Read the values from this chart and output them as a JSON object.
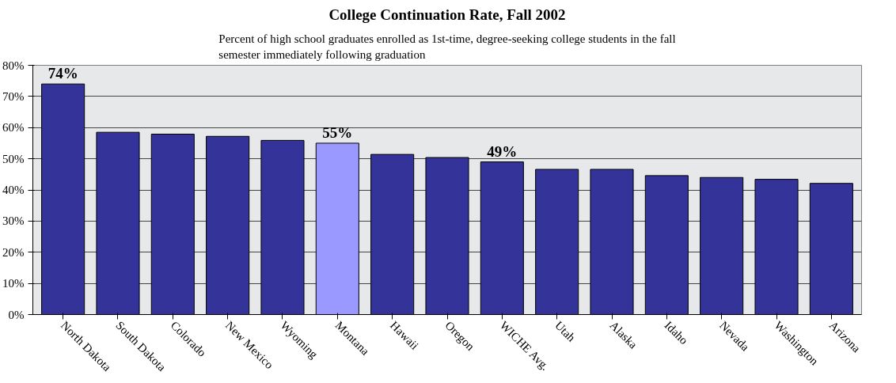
{
  "chart_data": {
    "type": "bar",
    "title": "College Continuation Rate, Fall 2002",
    "subtitle": "Percent of high school graduates enrolled as 1st-time, degree-seeking college students in the fall\nsemester immediately following graduation",
    "categories": [
      "North Dakota",
      "South Dakota",
      "Colorado",
      "New Mexico",
      "Wyoming",
      "Montana",
      "Hawaii",
      "Oregon",
      "WICHE Avg.",
      "Utah",
      "Alaska",
      "Idaho",
      "Nevada",
      "Washington",
      "Arizona"
    ],
    "values": [
      74,
      58.5,
      57.9,
      57.2,
      55.9,
      55,
      51.4,
      50.4,
      49,
      46.6,
      46.6,
      44.6,
      44.0,
      43.4,
      42.1
    ],
    "value_labels": [
      "74%",
      null,
      null,
      null,
      null,
      "55%",
      null,
      null,
      "49%",
      null,
      null,
      null,
      null,
      null,
      null
    ],
    "colors": [
      "#333399",
      "#333399",
      "#333399",
      "#333399",
      "#333399",
      "#9999ff",
      "#333399",
      "#333399",
      "#333399",
      "#333399",
      "#333399",
      "#333399",
      "#333399",
      "#333399",
      "#333399"
    ],
    "ylim": [
      0,
      80
    ],
    "yticks": [
      {
        "value": 0,
        "label": "0%"
      },
      {
        "value": 10,
        "label": "10%"
      },
      {
        "value": 20,
        "label": "20%"
      },
      {
        "value": 30,
        "label": "30%"
      },
      {
        "value": 40,
        "label": "40%"
      },
      {
        "value": 50,
        "label": "50%"
      },
      {
        "value": 60,
        "label": "60%"
      },
      {
        "value": 70,
        "label": "70%"
      },
      {
        "value": 80,
        "label": "80%"
      }
    ],
    "grid": "y"
  }
}
